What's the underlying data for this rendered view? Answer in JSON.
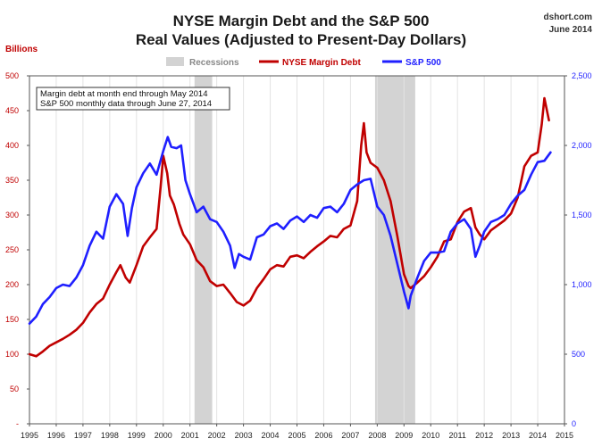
{
  "chart_data": {
    "type": "line",
    "title": "NYSE Margin Debt and the S&P 500",
    "subtitle": "Real Values (Adjusted to Present-Day Dollars)",
    "source": "dshort.com",
    "date": "June 2014",
    "left_axis_label": "Billions",
    "notes": [
      "Margin debt at month end through May 2014",
      "S&P 500 monthly data through June 27, 2014"
    ],
    "legend": {
      "recessions": "Recessions",
      "margin": "NYSE Margin Debt",
      "sp500": "S&P 500"
    },
    "x_ticks": [
      "1995",
      "1996",
      "1997",
      "1998",
      "1999",
      "2000",
      "2001",
      "2002",
      "2003",
      "2004",
      "2005",
      "2006",
      "2007",
      "2008",
      "2009",
      "2010",
      "2011",
      "2012",
      "2013",
      "2014",
      "2015"
    ],
    "xlim": [
      1995,
      2015
    ],
    "y_left": {
      "ylim": [
        0,
        500
      ],
      "ticks": [
        "-",
        "50",
        "100",
        "150",
        "200",
        "250",
        "300",
        "350",
        "400",
        "450",
        "500"
      ]
    },
    "y_right": {
      "ylim": [
        0,
        2500
      ],
      "ticks": [
        "0",
        "500",
        "1,000",
        "1,500",
        "2,000",
        "2,500"
      ]
    },
    "recessions": [
      {
        "start": 2001.17,
        "end": 2001.83
      },
      {
        "start": 2007.92,
        "end": 2009.42
      }
    ],
    "colors": {
      "margin": "#c00000",
      "sp500": "#1f1fff",
      "recession": "#d3d3d3",
      "left_axis": "#c00000",
      "right_axis": "#1f1fff"
    },
    "series": [
      {
        "name": "NYSE Margin Debt",
        "axis": "left",
        "x": [
          1995.0,
          1995.25,
          1995.5,
          1995.75,
          1996.0,
          1996.25,
          1996.5,
          1996.75,
          1997.0,
          1997.25,
          1997.5,
          1997.75,
          1998.0,
          1998.25,
          1998.4,
          1998.6,
          1998.75,
          1999.0,
          1999.25,
          1999.5,
          1999.75,
          1999.9,
          2000.0,
          2000.15,
          2000.25,
          2000.4,
          2000.6,
          2000.75,
          2001.0,
          2001.25,
          2001.5,
          2001.75,
          2002.0,
          2002.25,
          2002.5,
          2002.75,
          2003.0,
          2003.25,
          2003.5,
          2003.75,
          2004.0,
          2004.25,
          2004.5,
          2004.75,
          2005.0,
          2005.25,
          2005.5,
          2005.75,
          2006.0,
          2006.25,
          2006.5,
          2006.75,
          2007.0,
          2007.25,
          2007.4,
          2007.5,
          2007.6,
          2007.75,
          2008.0,
          2008.25,
          2008.5,
          2008.75,
          2009.0,
          2009.17,
          2009.25,
          2009.5,
          2009.75,
          2010.0,
          2010.25,
          2010.5,
          2010.75,
          2011.0,
          2011.25,
          2011.5,
          2011.67,
          2011.83,
          2012.0,
          2012.25,
          2012.5,
          2012.75,
          2013.0,
          2013.25,
          2013.5,
          2013.75,
          2014.0,
          2014.15,
          2014.25,
          2014.42
        ],
        "values": [
          100,
          97,
          104,
          112,
          117,
          122,
          128,
          135,
          145,
          160,
          172,
          180,
          200,
          218,
          228,
          210,
          203,
          228,
          255,
          268,
          280,
          340,
          385,
          360,
          328,
          315,
          288,
          272,
          258,
          235,
          225,
          205,
          198,
          200,
          188,
          175,
          170,
          177,
          195,
          208,
          222,
          228,
          226,
          240,
          242,
          238,
          247,
          255,
          262,
          270,
          268,
          280,
          285,
          320,
          400,
          432,
          390,
          375,
          368,
          350,
          320,
          270,
          215,
          198,
          195,
          203,
          212,
          225,
          240,
          262,
          265,
          290,
          305,
          310,
          282,
          272,
          265,
          278,
          285,
          292,
          302,
          325,
          370,
          385,
          390,
          430,
          468,
          436
        ]
      },
      {
        "name": "S&P 500",
        "axis": "right",
        "x": [
          1995.0,
          1995.25,
          1995.5,
          1995.75,
          1996.0,
          1996.25,
          1996.5,
          1996.75,
          1997.0,
          1997.25,
          1997.5,
          1997.75,
          1998.0,
          1998.25,
          1998.5,
          1998.67,
          1998.83,
          1999.0,
          1999.25,
          1999.5,
          1999.75,
          2000.0,
          2000.17,
          2000.3,
          2000.5,
          2000.67,
          2000.83,
          2001.0,
          2001.25,
          2001.5,
          2001.75,
          2002.0,
          2002.25,
          2002.5,
          2002.67,
          2002.83,
          2003.0,
          2003.25,
          2003.5,
          2003.75,
          2004.0,
          2004.25,
          2004.5,
          2004.75,
          2005.0,
          2005.25,
          2005.5,
          2005.75,
          2006.0,
          2006.25,
          2006.5,
          2006.75,
          2007.0,
          2007.25,
          2007.5,
          2007.75,
          2008.0,
          2008.25,
          2008.5,
          2008.75,
          2009.0,
          2009.17,
          2009.25,
          2009.5,
          2009.75,
          2010.0,
          2010.25,
          2010.5,
          2010.75,
          2011.0,
          2011.25,
          2011.5,
          2011.67,
          2011.83,
          2012.0,
          2012.25,
          2012.5,
          2012.75,
          2013.0,
          2013.25,
          2013.5,
          2013.75,
          2014.0,
          2014.25,
          2014.48
        ],
        "values": [
          720,
          770,
          860,
          910,
          975,
          1000,
          990,
          1050,
          1140,
          1280,
          1380,
          1330,
          1560,
          1650,
          1580,
          1350,
          1550,
          1700,
          1800,
          1870,
          1790,
          1960,
          2060,
          1990,
          1980,
          2000,
          1750,
          1650,
          1520,
          1560,
          1470,
          1450,
          1380,
          1280,
          1120,
          1220,
          1200,
          1180,
          1340,
          1360,
          1420,
          1440,
          1400,
          1460,
          1490,
          1450,
          1500,
          1480,
          1550,
          1560,
          1520,
          1580,
          1680,
          1720,
          1750,
          1760,
          1560,
          1500,
          1350,
          1150,
          950,
          830,
          920,
          1050,
          1170,
          1230,
          1230,
          1240,
          1380,
          1440,
          1470,
          1400,
          1200,
          1280,
          1380,
          1450,
          1470,
          1500,
          1580,
          1640,
          1680,
          1790,
          1880,
          1890,
          1950
        ]
      }
    ]
  }
}
